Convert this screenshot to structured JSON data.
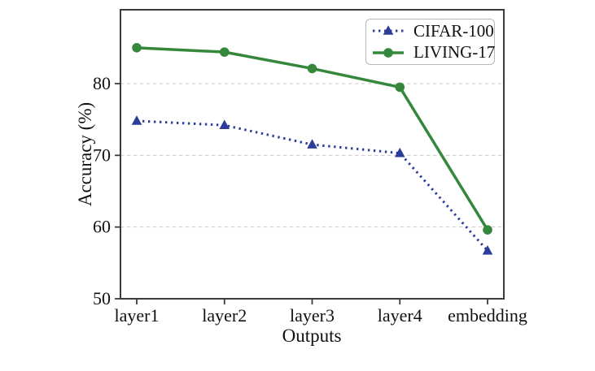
{
  "chart_data": {
    "type": "line",
    "title": "",
    "xlabel": "Outputs",
    "ylabel": "Accuracy (%)",
    "categories": [
      "layer1",
      "layer2",
      "layer3",
      "layer4",
      "embedding"
    ],
    "series": [
      {
        "name": "CIFAR-100",
        "values": [
          74.8,
          74.2,
          71.5,
          70.3,
          56.7
        ],
        "color": "#2c3c9a",
        "line_style": "dotted",
        "marker": "triangle"
      },
      {
        "name": "LIVING-17",
        "values": [
          85.0,
          84.4,
          82.1,
          79.5,
          59.6
        ],
        "color": "#35883b",
        "line_style": "solid",
        "marker": "circle"
      }
    ],
    "ylim": [
      50,
      90.3
    ],
    "yticks": [
      50,
      60,
      70,
      80
    ],
    "gridlines": [
      60,
      70,
      80
    ],
    "grid": "horizontal-dashed",
    "legend_position": "upper-right"
  },
  "colors": {
    "background": "#ffffff",
    "spine": "#3b3b3b",
    "gridline": "#c9c9c9",
    "text": "#111111",
    "legend_border": "#b8b8b8"
  }
}
